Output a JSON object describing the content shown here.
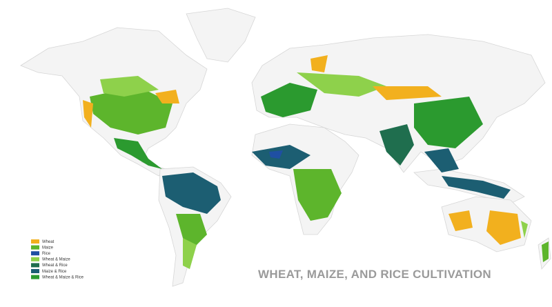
{
  "map": {
    "title": "WHEAT, MAIZE, AND RICE CULTIVATION",
    "legend": [
      {
        "label": "Wheat",
        "color": "#f2b01e"
      },
      {
        "label": "Maize",
        "color": "#5db52c"
      },
      {
        "label": "Rice",
        "color": "#1f4fa3"
      },
      {
        "label": "Wheat & Maize",
        "color": "#8ed14b"
      },
      {
        "label": "Wheat & Rice",
        "color": "#1f6e4e"
      },
      {
        "label": "Maize & Rice",
        "color": "#1c5e72"
      },
      {
        "label": "Wheat & Maize & Rice",
        "color": "#2b9a2f"
      }
    ]
  }
}
